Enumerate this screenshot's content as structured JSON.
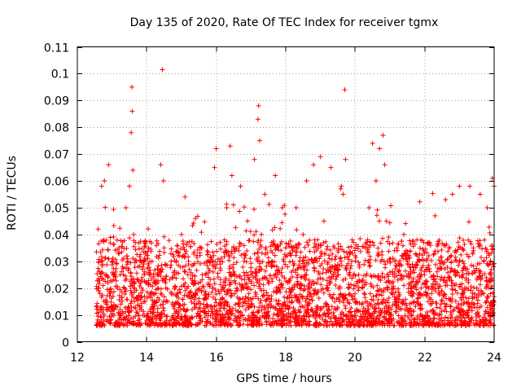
{
  "chart_data": {
    "type": "scatter",
    "title": "Day 135 of 2020, Rate Of TEC Index for receiver tgmx",
    "xlabel": "GPS time / hours",
    "ylabel": "ROTI / TECUs",
    "xlim": [
      12,
      24
    ],
    "ylim": [
      0,
      0.11
    ],
    "x_ticks": [
      12,
      14,
      16,
      18,
      20,
      22,
      24
    ],
    "x_tick_labels": [
      "12",
      "14",
      "16",
      "18",
      "20",
      "22",
      "24"
    ],
    "y_ticks": [
      0,
      0.01,
      0.02,
      0.03,
      0.04,
      0.05,
      0.06,
      0.07,
      0.08,
      0.09,
      0.1,
      0.11
    ],
    "y_tick_labels": [
      "0",
      "0.01",
      "0.02",
      "0.03",
      "0.04",
      "0.05",
      "0.06",
      "0.07",
      "0.08",
      "0.09",
      "0.1",
      "0.11"
    ],
    "grid": true,
    "marker": "+",
    "color": "#ff0000",
    "series": [
      {
        "name": "ROTI",
        "note": "dense scatter from 12.5 h to 24 h; representative sample of plotted points",
        "x": [
          12.55,
          12.6,
          12.62,
          12.65,
          12.7,
          12.72,
          12.75,
          12.78,
          12.8,
          12.85,
          12.88,
          12.9,
          12.95,
          13.0,
          13.05,
          13.1,
          13.15,
          13.2,
          13.25,
          13.3,
          13.35,
          13.4,
          13.45,
          13.5,
          13.55,
          13.57,
          13.58,
          13.6,
          13.62,
          13.65,
          13.7,
          13.75,
          13.8,
          13.85,
          13.9,
          13.95,
          14.0,
          14.05,
          14.1,
          14.15,
          14.2,
          14.3,
          14.4,
          14.45,
          14.48,
          14.5,
          14.55,
          14.6,
          14.7,
          14.8,
          14.9,
          15.0,
          15.1,
          15.2,
          15.3,
          15.4,
          15.5,
          15.6,
          15.7,
          15.8,
          15.9,
          15.95,
          16.0,
          16.1,
          16.2,
          16.3,
          16.4,
          16.45,
          16.5,
          16.6,
          16.7,
          16.8,
          16.9,
          17.0,
          17.1,
          17.2,
          17.22,
          17.25,
          17.3,
          17.4,
          17.5,
          17.6,
          17.7,
          17.8,
          17.9,
          18.0,
          18.1,
          18.2,
          18.3,
          18.4,
          18.5,
          18.6,
          18.7,
          18.8,
          18.9,
          19.0,
          19.1,
          19.2,
          19.3,
          19.4,
          19.5,
          19.6,
          19.65,
          19.7,
          19.72,
          19.8,
          19.9,
          20.0,
          20.1,
          20.2,
          20.3,
          20.4,
          20.5,
          20.6,
          20.7,
          20.8,
          20.85,
          20.9,
          21.0,
          21.1,
          21.2,
          21.3,
          21.4,
          21.5,
          21.6,
          21.7,
          21.8,
          21.9,
          22.0,
          22.1,
          22.2,
          22.3,
          22.4,
          22.5,
          22.6,
          22.7,
          22.8,
          22.9,
          23.0,
          23.1,
          23.2,
          23.3,
          23.4,
          23.5,
          23.6,
          23.7,
          23.8,
          23.9,
          23.95,
          24.0
        ],
        "y": [
          0.013,
          0.042,
          0.02,
          0.018,
          0.058,
          0.03,
          0.012,
          0.06,
          0.025,
          0.015,
          0.022,
          0.066,
          0.018,
          0.03,
          0.012,
          0.026,
          0.02,
          0.035,
          0.014,
          0.028,
          0.02,
          0.05,
          0.03,
          0.058,
          0.078,
          0.095,
          0.086,
          0.064,
          0.04,
          0.022,
          0.016,
          0.028,
          0.012,
          0.02,
          0.03,
          0.015,
          0.008,
          0.022,
          0.018,
          0.03,
          0.012,
          0.025,
          0.066,
          0.1015,
          0.06,
          0.035,
          0.02,
          0.015,
          0.03,
          0.025,
          0.018,
          0.04,
          0.054,
          0.03,
          0.022,
          0.046,
          0.015,
          0.025,
          0.018,
          0.03,
          0.02,
          0.065,
          0.072,
          0.03,
          0.02,
          0.05,
          0.073,
          0.062,
          0.035,
          0.02,
          0.058,
          0.03,
          0.045,
          0.025,
          0.068,
          0.083,
          0.088,
          0.075,
          0.04,
          0.055,
          0.022,
          0.03,
          0.062,
          0.02,
          0.05,
          0.035,
          0.015,
          0.03,
          0.05,
          0.02,
          0.04,
          0.06,
          0.02,
          0.066,
          0.03,
          0.069,
          0.045,
          0.02,
          0.065,
          0.035,
          0.025,
          0.058,
          0.055,
          0.094,
          0.068,
          0.02,
          0.03,
          0.015,
          0.025,
          0.02,
          0.035,
          0.05,
          0.074,
          0.06,
          0.072,
          0.077,
          0.066,
          0.045,
          0.03,
          0.02,
          0.035,
          0.025,
          0.04,
          0.03,
          0.02,
          0.015,
          0.032,
          0.02,
          0.022,
          0.015,
          0.018,
          0.047,
          0.02,
          0.03,
          0.053,
          0.035,
          0.055,
          0.025,
          0.058,
          0.03,
          0.02,
          0.058,
          0.035,
          0.02,
          0.055,
          0.03,
          0.05,
          0.025,
          0.061,
          0.058
        ]
      }
    ]
  }
}
